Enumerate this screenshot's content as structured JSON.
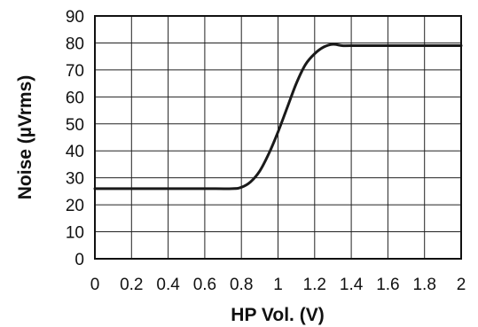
{
  "chart_data": {
    "type": "line",
    "title": "",
    "xlabel": "HP Vol. (V)",
    "ylabel": "Noise (µVrms)",
    "xlim": [
      0,
      2
    ],
    "ylim": [
      0,
      90
    ],
    "x_ticks": [
      0,
      0.2,
      0.4,
      0.6,
      0.8,
      1,
      1.2,
      1.4,
      1.6,
      1.8,
      2
    ],
    "x_tick_labels": [
      "0",
      "0.2",
      "0.4",
      "0.6",
      "0.8",
      "1",
      "1.2",
      "1.4",
      "1.6",
      "1.8",
      "2"
    ],
    "y_ticks": [
      0,
      10,
      20,
      30,
      40,
      50,
      60,
      70,
      80,
      90
    ],
    "y_tick_labels": [
      "0",
      "10",
      "20",
      "30",
      "40",
      "50",
      "60",
      "70",
      "80",
      "90"
    ],
    "grid": true,
    "legend": "none",
    "line_color": "#1a1a1a",
    "series": [
      {
        "x": [
          0,
          0.2,
          0.4,
          0.6,
          0.75,
          0.8,
          0.85,
          0.9,
          0.95,
          1.0,
          1.05,
          1.1,
          1.15,
          1.2,
          1.25,
          1.3,
          1.35,
          1.4,
          1.6,
          1.8,
          2.0
        ],
        "values": [
          26,
          26,
          26,
          26,
          26,
          26.5,
          28.5,
          32.5,
          39,
          47,
          56,
          65,
          72,
          76,
          78.5,
          79.5,
          79,
          79,
          79,
          79,
          79
        ]
      }
    ]
  }
}
